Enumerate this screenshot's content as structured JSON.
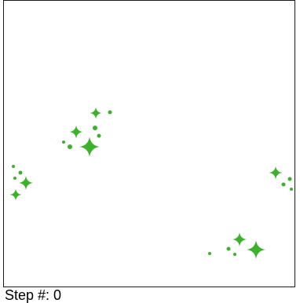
{
  "game": {
    "step_label": "Step #: 0",
    "colors": {
      "sprite": "#3cb12a",
      "border": "#1a1a1a",
      "background": "#ffffff"
    },
    "sprite_shape": "four-point-sparkle-icon"
  }
}
